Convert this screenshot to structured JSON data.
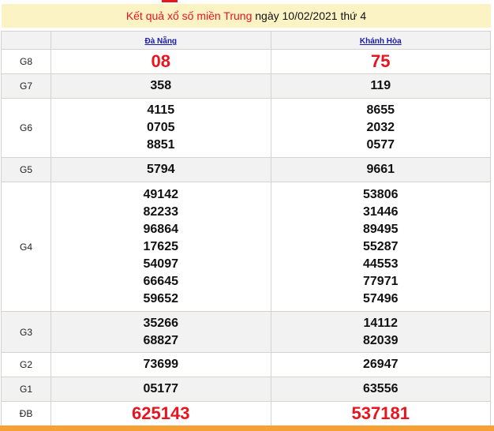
{
  "title": {
    "prefix": "Kết quả xổ số miền Trung",
    "suffix": "ngày 10/02/2021 thứ 4"
  },
  "provinces": [
    "Đà Nẵng",
    "Khánh Hòa"
  ],
  "rows": [
    {
      "label": "G8",
      "big": true,
      "values": [
        [
          "08"
        ],
        [
          "75"
        ]
      ]
    },
    {
      "label": "G7",
      "values": [
        [
          "358"
        ],
        [
          "119"
        ]
      ]
    },
    {
      "label": "G6",
      "values": [
        [
          "4115",
          "0705",
          "8851"
        ],
        [
          "8655",
          "2032",
          "0577"
        ]
      ]
    },
    {
      "label": "G5",
      "values": [
        [
          "5794"
        ],
        [
          "9661"
        ]
      ]
    },
    {
      "label": "G4",
      "values": [
        [
          "49142",
          "82233",
          "96864",
          "17625",
          "54097",
          "66645",
          "59652"
        ],
        [
          "53806",
          "31446",
          "89495",
          "55287",
          "44553",
          "77971",
          "57496"
        ]
      ]
    },
    {
      "label": "G3",
      "values": [
        [
          "35266",
          "68827"
        ],
        [
          "14112",
          "82039"
        ]
      ]
    },
    {
      "label": "G2",
      "values": [
        [
          "73699"
        ],
        [
          "26947"
        ]
      ]
    },
    {
      "label": "G1",
      "values": [
        [
          "05177"
        ],
        [
          "63556"
        ]
      ]
    },
    {
      "label": "ĐB",
      "big": true,
      "values": [
        [
          "625143"
        ],
        [
          "537181"
        ]
      ]
    }
  ]
}
